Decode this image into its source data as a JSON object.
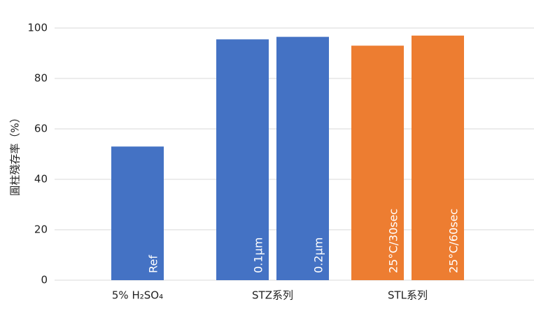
{
  "chart_data": {
    "type": "bar",
    "y_label": "圓柱殘存率（%）",
    "ylim": [
      0,
      100
    ],
    "yticks": [
      0,
      20,
      40,
      60,
      80,
      100
    ],
    "grid": true,
    "groups": [
      {
        "name": "5% H₂SO₄",
        "bars": [
          {
            "label": "Ref",
            "value": 53,
            "color": "#4472c4"
          }
        ]
      },
      {
        "name": "STZ系列",
        "bars": [
          {
            "label": "0.1μm",
            "value": 95.5,
            "color": "#4472c4"
          },
          {
            "label": "0.2μm",
            "value": 96.5,
            "color": "#4472c4"
          }
        ]
      },
      {
        "name": "STL系列",
        "bars": [
          {
            "label": "25°C/30sec",
            "value": 93,
            "color": "#ed7d31"
          },
          {
            "label": "25°C/60sec",
            "value": 97,
            "color": "#ed7d31"
          }
        ]
      }
    ]
  }
}
